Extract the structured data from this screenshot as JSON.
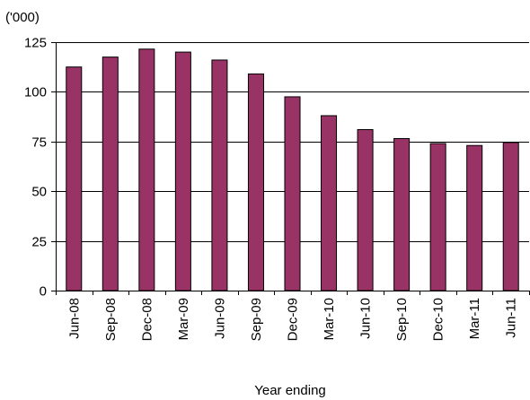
{
  "chart_data": {
    "type": "bar",
    "title": "",
    "unit_label": "('000)",
    "xlabel": "Year ending",
    "ylabel": "",
    "categories": [
      "Jun-08",
      "Sep-08",
      "Dec-08",
      "Mar-09",
      "Jun-09",
      "Sep-09",
      "Dec-09",
      "Mar-10",
      "Jun-10",
      "Sep-10",
      "Dec-10",
      "Mar-11",
      "Jun-11"
    ],
    "values": [
      112.5,
      117.5,
      121.5,
      120,
      116,
      109,
      97.5,
      88,
      81,
      76.5,
      74,
      73,
      74.5
    ],
    "ylim": [
      0,
      125
    ],
    "yticks": [
      0,
      25,
      50,
      75,
      100,
      125
    ],
    "grid": true,
    "legend": "none",
    "colors": {
      "bar_fill": "#993366",
      "bar_stroke": "#000000",
      "grid": "#000000",
      "axis": "#000000",
      "text": "#000000"
    }
  }
}
